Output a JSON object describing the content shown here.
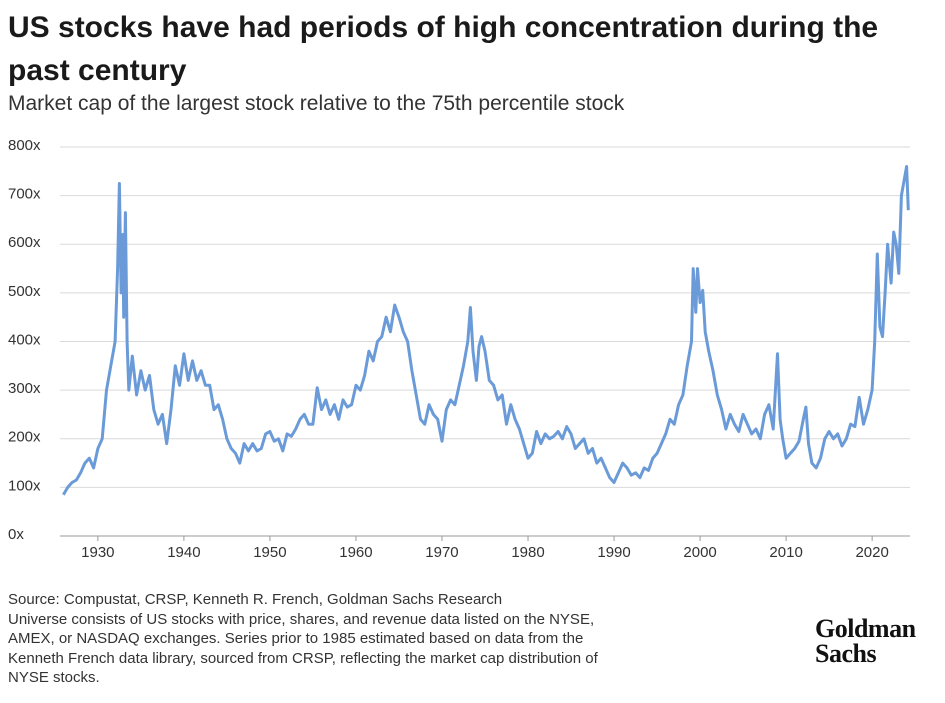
{
  "chart_data": {
    "type": "line",
    "title": "US stocks have had periods of high concentration during the past century",
    "subtitle": "Market cap of the largest stock relative to the 75th percentile stock",
    "notes": [
      "Source: Compustat, CRSP, Kenneth R. French, Goldman Sachs Research",
      "Universe consists of US stocks with price, shares, and revenue data listed on the NYSE,",
      "AMEX, or NASDAQ exchanges. Series prior to 1985 estimated based on data from the",
      "Kenneth French data library, sourced from CRSP, reflecting the market cap distribution of",
      "NYSE stocks."
    ],
    "logo": [
      "Goldman",
      "Sachs"
    ],
    "color": "#6a9bd8",
    "grid": true,
    "xlim": [
      1925.6,
      2024.4
    ],
    "xticks": [
      1930,
      1940,
      1950,
      1960,
      1970,
      1980,
      1990,
      2000,
      2010,
      2020
    ],
    "ylim": [
      0,
      800
    ],
    "yticks": [
      {
        "value": 0,
        "label": "0x"
      },
      {
        "value": 100,
        "label": "100x"
      },
      {
        "value": 200,
        "label": "200x"
      },
      {
        "value": 300,
        "label": "300x"
      },
      {
        "value": 400,
        "label": "400x"
      },
      {
        "value": 500,
        "label": "500x"
      },
      {
        "value": 600,
        "label": "600x"
      },
      {
        "value": 700,
        "label": "700x"
      },
      {
        "value": 800,
        "label": "800x"
      }
    ],
    "x": [
      1926,
      1926.5,
      1927,
      1927.5,
      1928,
      1928.5,
      1929,
      1929.5,
      1930,
      1930.5,
      1931,
      1931.5,
      1932,
      1932.3,
      1932.5,
      1932.7,
      1932.9,
      1933,
      1933.2,
      1933.4,
      1933.6,
      1934,
      1934.5,
      1935,
      1935.5,
      1936,
      1936.5,
      1937,
      1937.5,
      1938,
      1938.5,
      1939,
      1939.5,
      1940,
      1940.5,
      1941,
      1941.5,
      1942,
      1942.5,
      1943,
      1943.5,
      1944,
      1944.5,
      1945,
      1945.5,
      1946,
      1946.5,
      1947,
      1947.5,
      1948,
      1948.5,
      1949,
      1949.5,
      1950,
      1950.5,
      1951,
      1951.5,
      1952,
      1952.5,
      1953,
      1953.5,
      1954,
      1954.5,
      1955,
      1955.5,
      1956,
      1956.5,
      1957,
      1957.5,
      1958,
      1958.5,
      1959,
      1959.5,
      1960,
      1960.5,
      1961,
      1961.5,
      1962,
      1962.5,
      1963,
      1963.5,
      1964,
      1964.5,
      1965,
      1965.5,
      1966,
      1966.5,
      1967,
      1967.5,
      1968,
      1968.5,
      1969,
      1969.5,
      1970,
      1970.5,
      1971,
      1971.5,
      1972,
      1972.5,
      1973,
      1973.3,
      1973.6,
      1974,
      1974.3,
      1974.6,
      1975,
      1975.5,
      1976,
      1976.5,
      1977,
      1977.5,
      1978,
      1978.5,
      1979,
      1979.5,
      1980,
      1980.5,
      1981,
      1981.5,
      1982,
      1982.5,
      1983,
      1983.5,
      1984,
      1984.5,
      1985,
      1985.5,
      1986,
      1986.5,
      1987,
      1987.5,
      1988,
      1988.5,
      1989,
      1989.5,
      1990,
      1990.5,
      1991,
      1991.5,
      1992,
      1992.5,
      1993,
      1993.5,
      1994,
      1994.5,
      1995,
      1995.5,
      1996,
      1996.5,
      1997,
      1997.5,
      1998,
      1998.5,
      1999,
      1999.2,
      1999.5,
      1999.7,
      2000,
      2000.3,
      2000.6,
      2001,
      2001.5,
      2002,
      2002.5,
      2003,
      2003.5,
      2004,
      2004.5,
      2005,
      2005.5,
      2006,
      2006.5,
      2007,
      2007.5,
      2008,
      2008.5,
      2009,
      2009.3,
      2009.6,
      2010,
      2010.5,
      2011,
      2011.5,
      2012,
      2012.3,
      2012.6,
      2013,
      2013.5,
      2014,
      2014.5,
      2015,
      2015.5,
      2016,
      2016.5,
      2017,
      2017.5,
      2018,
      2018.5,
      2019,
      2019.5,
      2020,
      2020.3,
      2020.6,
      2020.9,
      2021.2,
      2021.5,
      2021.8,
      2022.2,
      2022.5,
      2022.8,
      2023.1,
      2023.4,
      2023.7,
      2024,
      2024.2
    ],
    "values": [
      85,
      100,
      110,
      115,
      130,
      150,
      160,
      140,
      180,
      200,
      300,
      350,
      400,
      550,
      725,
      500,
      620,
      450,
      665,
      400,
      300,
      370,
      290,
      340,
      300,
      330,
      260,
      230,
      250,
      190,
      260,
      350,
      310,
      375,
      320,
      360,
      320,
      340,
      310,
      310,
      260,
      270,
      240,
      200,
      180,
      170,
      150,
      190,
      175,
      190,
      175,
      180,
      210,
      215,
      195,
      200,
      175,
      210,
      205,
      220,
      240,
      250,
      230,
      230,
      305,
      260,
      280,
      250,
      270,
      240,
      280,
      265,
      270,
      310,
      300,
      330,
      380,
      360,
      400,
      410,
      450,
      420,
      475,
      450,
      420,
      400,
      340,
      290,
      240,
      230,
      270,
      250,
      240,
      195,
      260,
      280,
      270,
      310,
      350,
      400,
      470,
      380,
      320,
      390,
      410,
      380,
      320,
      310,
      280,
      290,
      230,
      270,
      240,
      220,
      190,
      160,
      170,
      215,
      190,
      210,
      200,
      205,
      215,
      200,
      225,
      210,
      180,
      190,
      200,
      170,
      180,
      150,
      160,
      140,
      120,
      110,
      130,
      150,
      140,
      125,
      130,
      120,
      140,
      135,
      160,
      170,
      190,
      210,
      240,
      230,
      270,
      290,
      350,
      400,
      550,
      460,
      550,
      480,
      505,
      420,
      380,
      340,
      290,
      260,
      220,
      250,
      230,
      215,
      250,
      230,
      210,
      220,
      200,
      250,
      270,
      220,
      375,
      240,
      200,
      160,
      170,
      180,
      195,
      240,
      265,
      190,
      150,
      140,
      160,
      200,
      215,
      200,
      210,
      185,
      200,
      230,
      225,
      285,
      230,
      260,
      300,
      400,
      580,
      430,
      410,
      500,
      600,
      520,
      625,
      600,
      540,
      700,
      730,
      760,
      670
    ]
  }
}
